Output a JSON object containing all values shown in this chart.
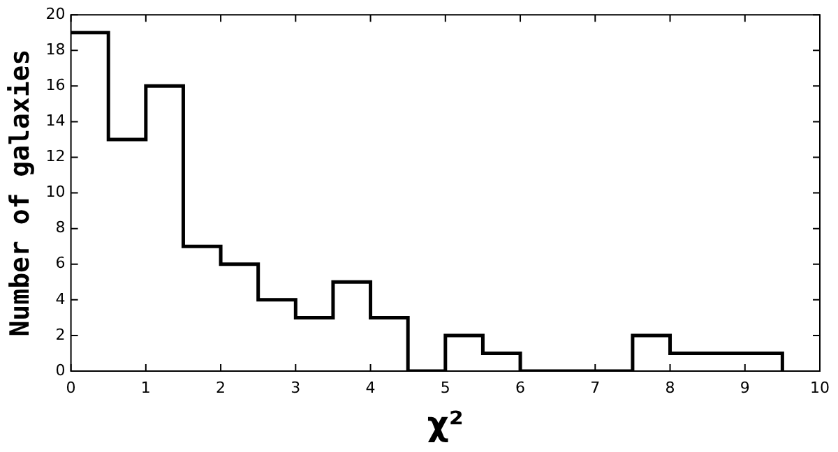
{
  "chart_data": {
    "type": "histogram",
    "xlabel": "χ²",
    "ylabel": "Number of galaxies",
    "bins": [
      0,
      0.5,
      1,
      1.5,
      2,
      2.5,
      3,
      3.5,
      4,
      4.5,
      5,
      5.5,
      6,
      6.5,
      7,
      7.5,
      8,
      8.5,
      9,
      9.5
    ],
    "values": [
      19,
      13,
      16,
      7,
      6,
      4,
      3,
      5,
      3,
      0,
      2,
      1,
      0,
      0,
      0,
      2,
      1,
      1,
      1
    ],
    "color": "#000000",
    "xlim": [
      0,
      10
    ],
    "ylim": [
      0,
      20
    ],
    "xticks": [
      0,
      1,
      2,
      3,
      4,
      5,
      6,
      7,
      8,
      9,
      10
    ],
    "yticks": [
      0,
      2,
      4,
      6,
      8,
      10,
      12,
      14,
      16,
      18,
      20
    ],
    "grid": false,
    "legend": false
  }
}
